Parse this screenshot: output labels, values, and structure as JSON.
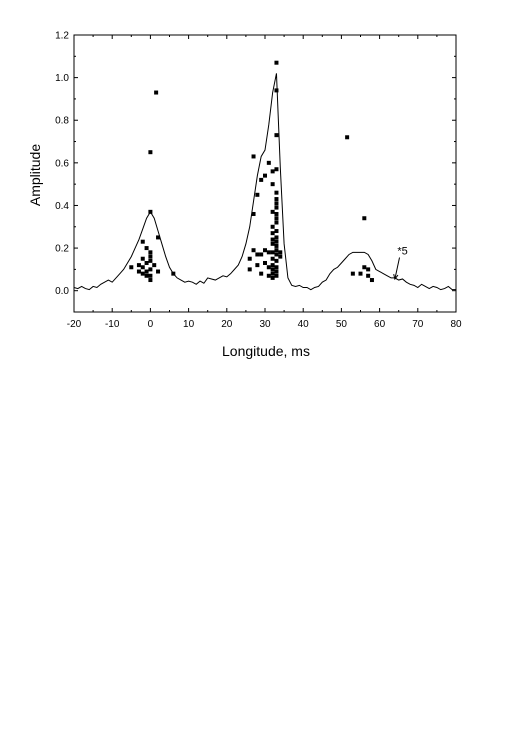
{
  "chart_data": {
    "type": "line",
    "title": "",
    "xlabel": "Longitude, ms",
    "ylabel": "Amplitude",
    "xlim": [
      -20,
      80
    ],
    "ylim": [
      -0.1,
      1.2
    ],
    "x_ticks": [
      -20,
      -10,
      0,
      10,
      20,
      30,
      40,
      50,
      60,
      70,
      80
    ],
    "x_tick_labels": [
      "-20",
      "-10",
      "0",
      "10",
      "20",
      "30",
      "40",
      "50",
      "60",
      "70",
      "80"
    ],
    "y_ticks": [
      0.0,
      0.2,
      0.4,
      0.6,
      0.8,
      1.0,
      1.2
    ],
    "y_tick_labels": [
      "0.0",
      "0.2",
      "0.4",
      "0.6",
      "0.8",
      "1.0",
      "1.2"
    ],
    "grid": false,
    "legend": "none",
    "series": [
      {
        "type": "line",
        "color": "#000000",
        "x": [
          -20,
          -19,
          -18,
          -17,
          -16,
          -15,
          -14,
          -13,
          -12,
          -11,
          -10,
          -9,
          -8,
          -7,
          -6,
          -5,
          -4,
          -3,
          -2,
          -1,
          0,
          1,
          2,
          3,
          4,
          5,
          6,
          7,
          8,
          9,
          10,
          11,
          12,
          13,
          14,
          15,
          16,
          17,
          18,
          19,
          20,
          21,
          22,
          23,
          24,
          25,
          26,
          27,
          28,
          29,
          30,
          31,
          32,
          33,
          34,
          35,
          36,
          37,
          38,
          39,
          40,
          41,
          42,
          43,
          44,
          45,
          46,
          47,
          48,
          49,
          50,
          51,
          52,
          53,
          54,
          55,
          56,
          57,
          58,
          59,
          60,
          61,
          62,
          63,
          64,
          65,
          66,
          67,
          68,
          69,
          70,
          71,
          72,
          73,
          74,
          75,
          76,
          77,
          78,
          79,
          80
        ],
        "y": [
          0.015,
          0.01,
          0.02,
          0.01,
          0.005,
          0.02,
          0.015,
          0.03,
          0.04,
          0.05,
          0.04,
          0.06,
          0.08,
          0.1,
          0.13,
          0.16,
          0.2,
          0.24,
          0.29,
          0.34,
          0.37,
          0.34,
          0.28,
          0.22,
          0.16,
          0.11,
          0.08,
          0.06,
          0.05,
          0.04,
          0.045,
          0.04,
          0.03,
          0.045,
          0.035,
          0.06,
          0.055,
          0.05,
          0.06,
          0.07,
          0.065,
          0.08,
          0.1,
          0.12,
          0.16,
          0.22,
          0.3,
          0.42,
          0.54,
          0.63,
          0.66,
          0.78,
          0.93,
          1.02,
          0.58,
          0.22,
          0.06,
          0.025,
          0.02,
          0.025,
          0.015,
          0.015,
          0.005,
          0.015,
          0.02,
          0.04,
          0.05,
          0.08,
          0.1,
          0.11,
          0.13,
          0.15,
          0.17,
          0.18,
          0.18,
          0.18,
          0.18,
          0.17,
          0.14,
          0.1,
          0.09,
          0.08,
          0.07,
          0.06,
          0.06,
          0.05,
          0.055,
          0.04,
          0.03,
          0.025,
          0.015,
          0.03,
          0.02,
          0.01,
          0.02,
          0.015,
          0.005,
          0.01,
          0.02,
          0.005,
          0.005
        ]
      },
      {
        "type": "scatter",
        "marker": "square",
        "color": "#000000",
        "points": [
          [
            1.5,
            0.93
          ],
          [
            0,
            0.65
          ],
          [
            0,
            0.37
          ],
          [
            2,
            0.25
          ],
          [
            -2,
            0.23
          ],
          [
            -1,
            0.2
          ],
          [
            0,
            0.18
          ],
          [
            0,
            0.16
          ],
          [
            -2,
            0.15
          ],
          [
            0,
            0.14
          ],
          [
            -1,
            0.13
          ],
          [
            1,
            0.12
          ],
          [
            -3,
            0.12
          ],
          [
            -2,
            0.11
          ],
          [
            -5,
            0.11
          ],
          [
            0,
            0.1
          ],
          [
            -1,
            0.09
          ],
          [
            -3,
            0.09
          ],
          [
            2,
            0.09
          ],
          [
            -2,
            0.08
          ],
          [
            0,
            0.07
          ],
          [
            6,
            0.08
          ],
          [
            -1,
            0.07
          ],
          [
            0,
            0.05
          ],
          [
            33,
            1.07
          ],
          [
            33,
            0.94
          ],
          [
            33,
            0.73
          ],
          [
            27,
            0.63
          ],
          [
            31,
            0.6
          ],
          [
            33,
            0.57
          ],
          [
            32,
            0.56
          ],
          [
            30,
            0.54
          ],
          [
            29,
            0.52
          ],
          [
            32,
            0.5
          ],
          [
            28,
            0.45
          ],
          [
            33,
            0.46
          ],
          [
            33,
            0.43
          ],
          [
            33,
            0.41
          ],
          [
            33,
            0.39
          ],
          [
            32,
            0.37
          ],
          [
            33,
            0.36
          ],
          [
            27,
            0.36
          ],
          [
            33,
            0.34
          ],
          [
            33,
            0.32
          ],
          [
            32,
            0.3
          ],
          [
            33,
            0.28
          ],
          [
            32,
            0.27
          ],
          [
            33,
            0.25
          ],
          [
            32,
            0.24
          ],
          [
            33,
            0.23
          ],
          [
            32,
            0.22
          ],
          [
            33,
            0.21
          ],
          [
            33,
            0.19
          ],
          [
            30,
            0.19
          ],
          [
            27,
            0.19
          ],
          [
            32,
            0.18
          ],
          [
            31,
            0.18
          ],
          [
            34,
            0.18
          ],
          [
            28,
            0.17
          ],
          [
            29,
            0.17
          ],
          [
            33,
            0.17
          ],
          [
            34,
            0.16
          ],
          [
            26,
            0.15
          ],
          [
            32,
            0.15
          ],
          [
            33,
            0.14
          ],
          [
            30,
            0.13
          ],
          [
            28,
            0.12
          ],
          [
            32,
            0.12
          ],
          [
            33,
            0.11
          ],
          [
            31,
            0.11
          ],
          [
            26,
            0.1
          ],
          [
            32,
            0.1
          ],
          [
            33,
            0.09
          ],
          [
            29,
            0.08
          ],
          [
            32,
            0.08
          ],
          [
            31,
            0.07
          ],
          [
            33,
            0.07
          ],
          [
            32,
            0.06
          ],
          [
            51.5,
            0.72
          ],
          [
            56,
            0.34
          ],
          [
            56,
            0.11
          ],
          [
            57,
            0.1
          ],
          [
            55,
            0.08
          ],
          [
            53,
            0.08
          ],
          [
            57,
            0.07
          ],
          [
            58,
            0.05
          ]
        ]
      }
    ],
    "annotations": [
      {
        "text": "*5",
        "x": 66,
        "y": 0.17,
        "arrow_to": [
          64,
          0.055
        ]
      }
    ]
  }
}
